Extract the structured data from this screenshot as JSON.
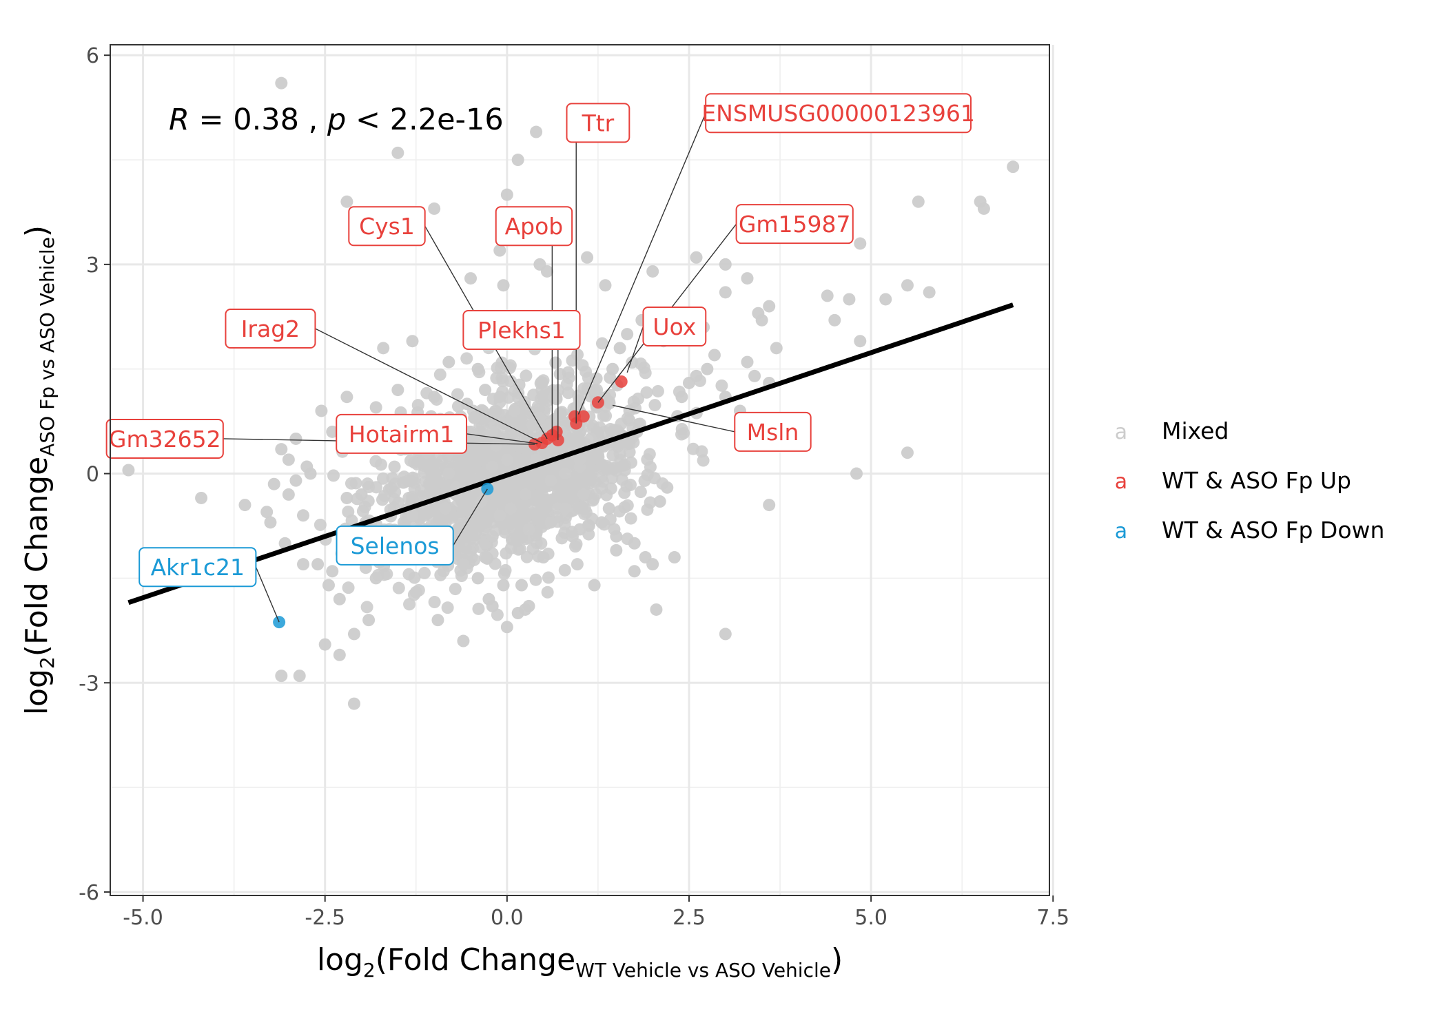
{
  "chart_data": {
    "type": "scatter",
    "annotation": {
      "r_label": "R",
      "r_text": " = 0.38 , ",
      "p_label": "p",
      "p_text": " < 2.2e-16"
    },
    "xlabel": {
      "prefix": "log",
      "base": "2",
      "open": "(Fold Change",
      "sub": "WT Vehicle vs ASO Vehicle",
      "close": ")"
    },
    "ylabel": {
      "prefix": "log",
      "base": "2",
      "open": "(Fold Change",
      "sub": "ASO Fp vs ASO Vehicle",
      "close": ")"
    },
    "xlim": [
      -5.45,
      7.45
    ],
    "ylim": [
      -6.05,
      6.15
    ],
    "x_ticks": [
      -5.0,
      -2.5,
      0.0,
      2.5,
      5.0,
      7.5
    ],
    "x_tick_labels": [
      "-5.0",
      "-2.5",
      "0.0",
      "2.5",
      "5.0",
      "7.5"
    ],
    "y_ticks": [
      -6,
      -3,
      0,
      3,
      6
    ],
    "y_tick_labels": [
      "-6",
      "-3",
      "0",
      "3",
      "6"
    ],
    "grid": true,
    "regression_line": {
      "x": [
        -5.2,
        6.95
      ],
      "y": [
        -1.85,
        2.42
      ]
    },
    "legend": {
      "position": "right",
      "items": [
        {
          "key": "mixed",
          "glyph": "a",
          "label": "Mixed",
          "color": "#cccccc"
        },
        {
          "key": "up",
          "glyph": "a",
          "label": "WT & ASO Fp Up",
          "color": "#e8413c"
        },
        {
          "key": "down",
          "glyph": "a",
          "label": "WT & ASO Fp Down",
          "color": "#1b9ad6"
        }
      ]
    },
    "series": [
      {
        "name": "Mixed",
        "color": "#cccccc",
        "x": [
          -3.1,
          -1.5,
          0.4,
          0.15,
          -2.2,
          -1.0,
          0.0,
          6.95,
          6.5,
          6.55,
          5.65,
          4.85,
          5.5,
          5.8,
          5.2,
          4.7,
          4.4,
          4.85,
          4.5,
          5.5,
          4.8,
          -5.2,
          -4.2,
          -3.6,
          -3.3,
          -2.8,
          -2.2,
          -2.0,
          -2.3,
          0.3,
          -2.3,
          0.25,
          3.0,
          2.05,
          -3.1,
          -2.85,
          -2.5,
          -2.1,
          3.6,
          -0.3,
          -1.2,
          -0.3,
          -0.2,
          1.0,
          0.9,
          1.5,
          2.0,
          2.3,
          1.2,
          1.75,
          -0.05,
          -0.5,
          -0.1,
          0.45,
          0.55,
          1.1,
          1.35,
          2.0,
          2.6,
          3.0,
          3.3,
          3.0,
          3.45,
          3.6,
          2.7,
          3.5,
          3.7,
          3.3,
          3.4,
          3.6,
          3.0,
          3.2,
          -0.8,
          -0.4,
          -1.7,
          -1.3,
          -2.2,
          -2.55,
          -1.95,
          -2.4,
          -2.9,
          -3.1,
          -3.0,
          -2.7,
          -3.2,
          -1.5,
          -1.8,
          -1.0,
          -1.6,
          -1.4,
          -1.1,
          -0.9,
          -0.6,
          -0.8,
          -0.7,
          -0.2,
          -0.5,
          0.0,
          -0.35,
          0.25,
          0.4,
          -0.2,
          0.6,
          0.8,
          0.9,
          0.55,
          -0.15,
          -1.3,
          -1.4,
          -1.6,
          -1.8,
          -2.0,
          1.4,
          1.3,
          1.5,
          1.75,
          1.9,
          2.1,
          2.2,
          1.0,
          0.7,
          0.5,
          0.2,
          -0.2,
          0.0,
          -0.6,
          -0.95,
          -1.25,
          -2.4,
          -2.45,
          -1.9,
          -2.1,
          -2.05,
          -2.6,
          2.4,
          2.5,
          2.6,
          2.75,
          2.85,
          2.15,
          2.35,
          1.85,
          1.65,
          1.55,
          1.45,
          1.2,
          -2.75,
          -2.9,
          -3.0,
          -3.25,
          -3.05,
          -2.8,
          0.05,
          -0.1,
          0.3,
          0.6,
          0.8,
          1.05,
          0.95,
          1.15,
          -0.45,
          -0.55,
          -0.3,
          -0.1,
          0.1,
          0.35,
          0.45,
          0.65,
          0.75,
          1.0,
          -0.7,
          -0.85,
          -1.05,
          -1.2,
          -0.6,
          -0.4,
          -0.25,
          -0.05,
          0.15
        ],
        "y": [
          5.6,
          4.6,
          4.9,
          4.5,
          3.9,
          3.8,
          4.0,
          4.4,
          3.9,
          3.8,
          3.9,
          3.3,
          2.7,
          2.6,
          2.5,
          2.5,
          2.55,
          1.9,
          2.2,
          0.3,
          0.0,
          0.05,
          -0.35,
          -0.45,
          -0.55,
          -0.6,
          -0.35,
          -0.3,
          -1.8,
          -1.9,
          -2.6,
          -1.95,
          -2.3,
          -1.95,
          -2.9,
          -2.9,
          -2.45,
          -3.3,
          -0.45,
          -1.2,
          -1.2,
          -1.0,
          -0.9,
          -0.8,
          -0.9,
          -1.1,
          -1.3,
          -1.2,
          -1.6,
          -1.4,
          2.7,
          2.8,
          3.2,
          3.0,
          2.9,
          3.1,
          2.7,
          2.9,
          3.1,
          3.0,
          2.8,
          2.6,
          2.3,
          2.4,
          2.1,
          2.2,
          1.8,
          1.6,
          1.4,
          1.3,
          1.1,
          0.9,
          1.6,
          1.5,
          1.8,
          1.9,
          1.1,
          0.9,
          0.7,
          0.6,
          0.5,
          0.35,
          0.2,
          0.0,
          -0.15,
          1.2,
          0.95,
          1.1,
          0.55,
          0.35,
          0.3,
          0.4,
          0.5,
          0.0,
          -0.2,
          0.1,
          0.6,
          0.2,
          -0.4,
          -0.3,
          0.2,
          0.6,
          -0.1,
          0.0,
          0.3,
          0.7,
          0.4,
          -0.6,
          -0.9,
          -1.2,
          -1.5,
          -1.0,
          -0.5,
          -0.7,
          -0.9,
          -1.0,
          -1.2,
          -0.4,
          -0.2,
          0.1,
          -0.5,
          -1.2,
          -1.6,
          -1.9,
          -2.2,
          -2.4,
          -2.1,
          -1.7,
          -1.4,
          -1.6,
          -2.1,
          -2.3,
          -1.05,
          -1.3,
          1.1,
          1.3,
          1.4,
          1.5,
          1.7,
          1.9,
          2.0,
          2.2,
          2.0,
          1.8,
          1.5,
          1.2,
          0.1,
          -0.1,
          -0.3,
          -0.7,
          -1.0,
          -1.3,
          -0.5,
          -0.6,
          -0.8,
          -0.7,
          -0.5,
          -0.3,
          0.3,
          0.5,
          0.8,
          1.0,
          1.2,
          1.1,
          0.9,
          0.7,
          0.8,
          1.1,
          0.6,
          0.2,
          -0.3,
          -0.5,
          -0.8,
          -1.0,
          -1.3,
          -1.5,
          -1.8,
          -1.6,
          -2.0
        ],
        "cloud": {
          "cx": 0.05,
          "cy": 0.0,
          "sx": 0.9,
          "sy": 0.65,
          "rho": 0.38,
          "count": 1400
        }
      },
      {
        "name": "WT & ASO Fp Up",
        "color": "#e8413c",
        "x": [
          0.38,
          0.48,
          0.55,
          0.62,
          0.68,
          0.7,
          0.95,
          0.93,
          1.05,
          1.25,
          1.57
        ],
        "y": [
          0.42,
          0.44,
          0.5,
          0.55,
          0.6,
          0.48,
          0.72,
          0.82,
          0.82,
          1.02,
          1.32
        ]
      },
      {
        "name": "WT & ASO Fp Down",
        "color": "#1b9ad6",
        "x": [
          -0.27,
          -3.13
        ],
        "y": [
          -0.22,
          -2.13
        ]
      }
    ],
    "gene_labels": [
      {
        "id": "ttr",
        "text": "Ttr",
        "group": "up",
        "px": 0.95,
        "py": 0.72,
        "lx": 1.25,
        "ly": 5.03
      },
      {
        "id": "ensmusg",
        "text": "ENSMUSG00000123961",
        "group": "up",
        "px": 0.98,
        "py": 0.85,
        "lx": 4.55,
        "ly": 5.17
      },
      {
        "id": "cys1",
        "text": "Cys1",
        "group": "up",
        "px": 0.55,
        "py": 0.5,
        "lx": -1.65,
        "ly": 3.55
      },
      {
        "id": "apob",
        "text": "Apob",
        "group": "up",
        "px": 0.62,
        "py": 0.55,
        "lx": 0.37,
        "ly": 3.55
      },
      {
        "id": "gm15987",
        "text": "Gm15987",
        "group": "up",
        "px": 1.25,
        "py": 1.02,
        "lx": 3.95,
        "ly": 3.58
      },
      {
        "id": "irag2",
        "text": "Irag2",
        "group": "up",
        "px": 0.48,
        "py": 0.44,
        "lx": -3.25,
        "ly": 2.08
      },
      {
        "id": "plekhs1",
        "text": "Plekhs1",
        "group": "up",
        "px": 0.7,
        "py": 0.48,
        "lx": 0.2,
        "ly": 2.06
      },
      {
        "id": "uox",
        "text": "Uox",
        "group": "up",
        "px": 1.65,
        "py": 1.45,
        "lx": 2.3,
        "ly": 2.11
      },
      {
        "id": "gm32652",
        "text": "Gm32652",
        "group": "up",
        "px": 0.38,
        "py": 0.42,
        "lx": -4.7,
        "ly": 0.5
      },
      {
        "id": "hotairm1",
        "text": "Hotairm1",
        "group": "up",
        "px": 0.42,
        "py": 0.43,
        "lx": -1.45,
        "ly": 0.57
      },
      {
        "id": "msln",
        "text": "Msln",
        "group": "up",
        "px": 1.45,
        "py": 0.98,
        "lx": 3.65,
        "ly": 0.6
      },
      {
        "id": "selenos",
        "text": "Selenos",
        "group": "down",
        "px": -0.27,
        "py": -0.22,
        "lx": -1.54,
        "ly": -1.03
      },
      {
        "id": "akr1c21",
        "text": "Akr1c21",
        "group": "down",
        "px": -3.13,
        "py": -2.13,
        "lx": -4.25,
        "ly": -1.34
      }
    ]
  }
}
